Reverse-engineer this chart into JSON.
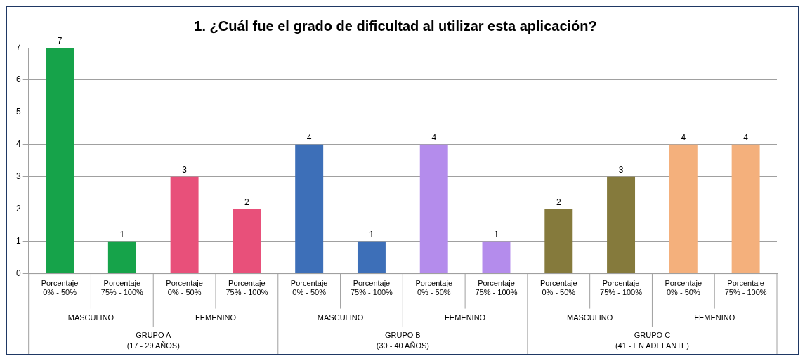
{
  "chart_data": {
    "type": "bar",
    "title": "1. ¿Cuál fue el grado de dificultad al utilizar esta aplicación?",
    "categories": [
      "Porcentaje 0% - 50%",
      "Porcentaje 75% - 100%",
      "Porcentaje 0% - 50%",
      "Porcentaje 75% - 100%",
      "Porcentaje 0% - 50%",
      "Porcentaje 75% - 100%",
      "Porcentaje 0% - 50%",
      "Porcentaje 75% - 100%",
      "Porcentaje 0% - 50%",
      "Porcentaje 75% - 100%",
      "Porcentaje 0% - 50%",
      "Porcentaje 75% - 100%"
    ],
    "values": [
      7,
      1,
      3,
      2,
      4,
      1,
      4,
      1,
      2,
      3,
      4,
      4
    ],
    "colors": [
      "#16a34a",
      "#16a34a",
      "#e8507a",
      "#e8507a",
      "#3d6fb8",
      "#3d6fb8",
      "#b48cec",
      "#b48cec",
      "#857a3c",
      "#857a3c",
      "#f4b07c",
      "#f4b07c"
    ],
    "ylim": [
      0,
      7
    ],
    "yticks": [
      0,
      1,
      2,
      3,
      4,
      5,
      6,
      7
    ],
    "grid": "y",
    "data_labels": true,
    "legend": false,
    "annotations": [
      "MASCULINO",
      "FEMENINO",
      "MASCULINO",
      "FEMENINO",
      "MASCULINO",
      "FEMENINO",
      "GRUPO A (17 - 29 AÑOS)",
      "GRUPO B (30 - 40 AÑOS)",
      "GRUPO C (41 - EN ADELANTE)"
    ]
  }
}
